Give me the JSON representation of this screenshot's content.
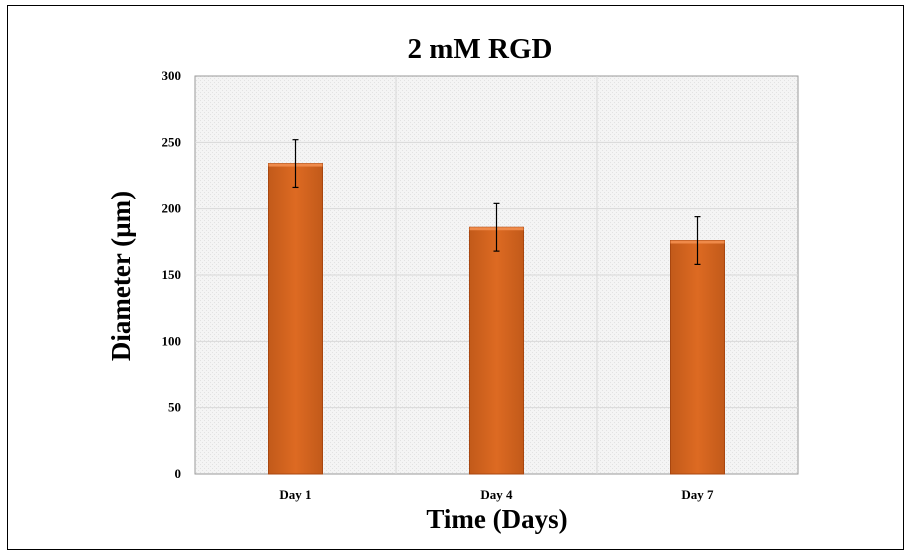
{
  "chart_data": {
    "type": "bar",
    "title": "2 mM RGD",
    "xlabel": "Time (Days)",
    "ylabel": "Diameter (µm)",
    "categories": [
      "Day 1",
      "Day 4",
      "Day 7"
    ],
    "values": [
      234,
      186,
      176
    ],
    "error": [
      18,
      18,
      18
    ],
    "ylim": [
      0,
      300
    ],
    "yticks": [
      0,
      50,
      100,
      150,
      200,
      250,
      300
    ],
    "grid": true,
    "legend": "none",
    "bar_color": "#d9661f",
    "bar_edge_color": "#a8460f",
    "plot_background": "#f2f2f2",
    "grid_color": "#d9d9d9"
  }
}
